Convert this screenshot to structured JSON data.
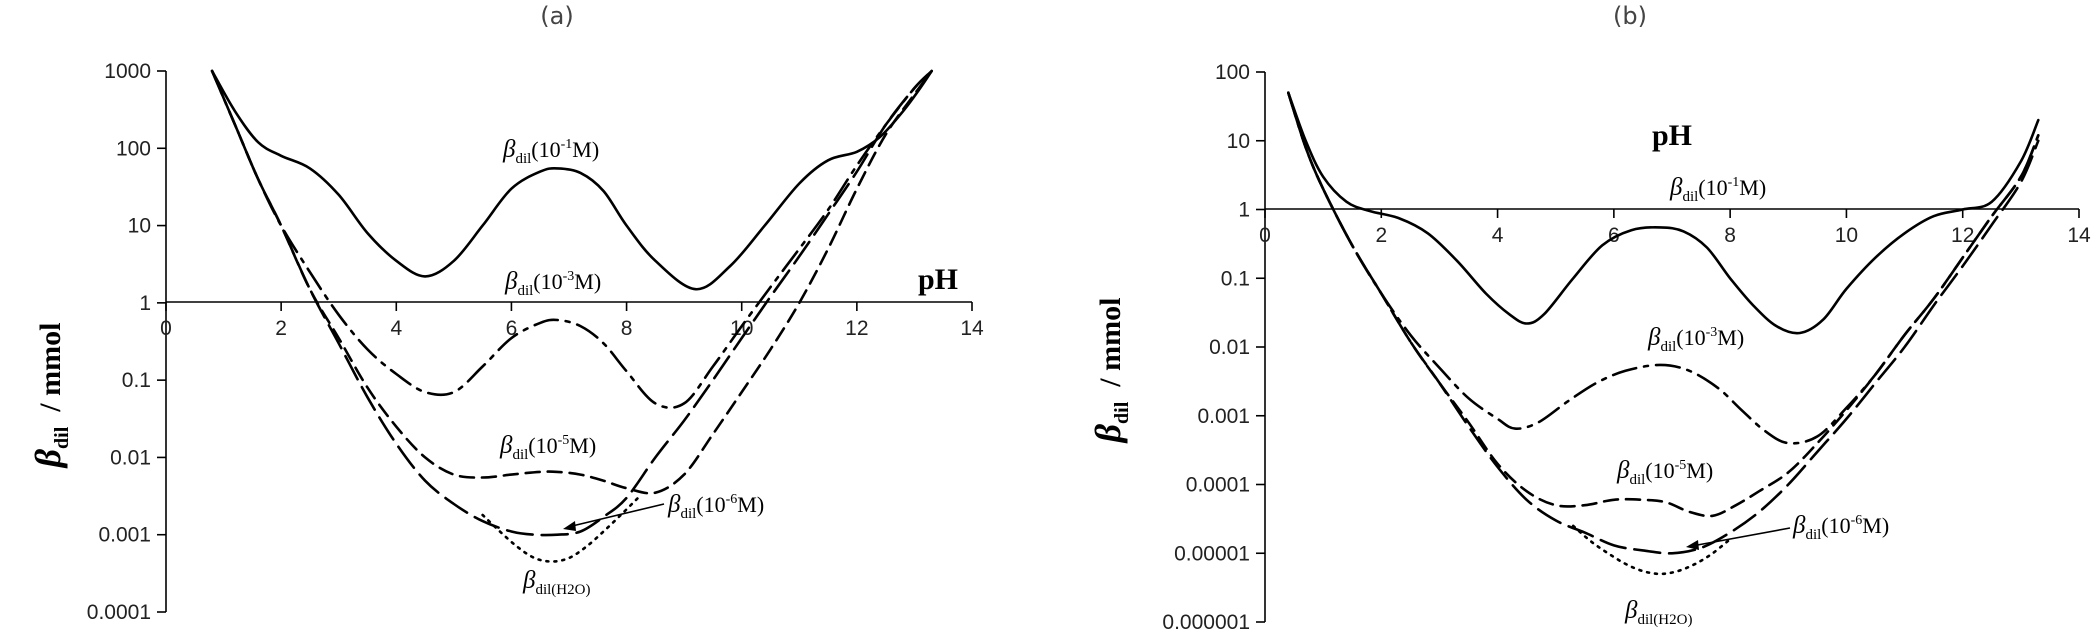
{
  "chart_data": [
    {
      "panel_label": "(a)",
      "type": "line",
      "xlabel": "pH",
      "ylabel": "β_dil / mmol",
      "ylabel_main": "β",
      "ylabel_sub": "dil",
      "ylabel_rest": "  / mmol",
      "log_y": true,
      "xlim": [
        0,
        14
      ],
      "ylim": [
        0.0001,
        1000
      ],
      "x_ticks": [
        "0",
        "2",
        "4",
        "6",
        "8",
        "10",
        "12",
        "14"
      ],
      "y_ticks": [
        "1000",
        "100",
        "10",
        "1",
        "0.1",
        "0.01",
        "0.001",
        "0.0001"
      ],
      "annotations": [
        {
          "pre": "β",
          "sub": "dil",
          "post": "(10",
          "sup": "-1",
          "end": "M)"
        },
        {
          "pre": "β",
          "sub": "dil",
          "post": "(10",
          "sup": "-3",
          "end": "M)"
        },
        {
          "pre": "β",
          "sub": "dil",
          "post": "(10",
          "sup": "-5",
          "end": "M)"
        },
        {
          "pre": "β",
          "sub": "dil",
          "post": "(10",
          "sup": "-6",
          "end": "M)"
        },
        {
          "pre": "β",
          "sub": "dil(H2O)",
          "post": "",
          "sup": "",
          "end": ""
        }
      ],
      "series": [
        {
          "style": "solid",
          "x": [
            0.8,
            1.2,
            1.6,
            2.0,
            2.5,
            3.0,
            3.5,
            4.0,
            4.5,
            5.0,
            5.5,
            6.0,
            6.5,
            6.8,
            7.2,
            7.6,
            8.0,
            8.5,
            9.2,
            9.8,
            10.4,
            11.0,
            11.5,
            12.0,
            12.4,
            12.8,
            13.1,
            13.3
          ],
          "y": [
            1000,
            300,
            120,
            80,
            55,
            25,
            8,
            3.5,
            2.2,
            3.5,
            10,
            30,
            50,
            55,
            48,
            28,
            10,
            3.5,
            1.5,
            3,
            10,
            35,
            70,
            90,
            140,
            300,
            600,
            1000
          ]
        },
        {
          "style": "dashdot",
          "x": [
            0.8,
            1.2,
            1.6,
            2.0,
            2.5,
            3.0,
            3.5,
            4.0,
            4.5,
            5.0,
            5.5,
            6.0,
            6.5,
            6.8,
            7.2,
            7.6,
            8.0,
            8.5,
            9.0,
            9.5,
            10.0,
            10.5,
            11.0,
            11.5,
            12.0,
            12.5,
            13.0,
            13.3
          ],
          "y": [
            1000,
            200,
            40,
            10,
            2.5,
            0.7,
            0.25,
            0.12,
            0.07,
            0.07,
            0.15,
            0.35,
            0.55,
            0.6,
            0.5,
            0.3,
            0.13,
            0.05,
            0.05,
            0.15,
            0.5,
            1.6,
            5,
            16,
            60,
            200,
            600,
            1000
          ]
        },
        {
          "style": "dashed",
          "x": [
            0.8,
            1.2,
            1.6,
            2.0,
            2.5,
            3.0,
            3.5,
            4.0,
            4.5,
            5.0,
            5.5,
            6.0,
            6.5,
            6.8,
            7.2,
            7.6,
            8.0,
            8.5,
            9.0,
            9.5,
            10.0,
            10.5,
            11.0,
            11.5,
            12.0,
            12.5,
            13.0,
            13.3
          ],
          "y": [
            1000,
            200,
            40,
            10,
            1.5,
            0.35,
            0.08,
            0.025,
            0.01,
            0.006,
            0.0055,
            0.006,
            0.0065,
            0.0065,
            0.006,
            0.005,
            0.004,
            0.0035,
            0.006,
            0.02,
            0.07,
            0.25,
            1,
            5,
            30,
            150,
            500,
            1000
          ]
        },
        {
          "style": "longdash",
          "x": [
            0.8,
            1.2,
            1.6,
            2.0,
            2.5,
            3.0,
            3.5,
            4.0,
            4.5,
            5.0,
            5.5,
            6.0,
            6.4,
            6.8,
            7.2,
            7.6,
            8.0,
            8.5,
            9.0,
            9.5,
            10.0,
            10.5,
            11.0,
            11.5,
            12.0,
            12.5,
            13.0,
            13.3
          ],
          "y": [
            1000,
            200,
            40,
            10,
            1.5,
            0.3,
            0.06,
            0.015,
            0.005,
            0.0025,
            0.0015,
            0.0011,
            0.001,
            0.001,
            0.0011,
            0.0017,
            0.003,
            0.01,
            0.03,
            0.1,
            0.35,
            1.2,
            4,
            14,
            50,
            200,
            600,
            1000
          ]
        },
        {
          "style": "dotted",
          "x": [
            5.5,
            5.8,
            6.1,
            6.4,
            6.7,
            7.0,
            7.3,
            7.6,
            7.9,
            8.2
          ],
          "y": [
            0.0018,
            0.0011,
            0.0007,
            0.0005,
            0.00045,
            0.0005,
            0.0007,
            0.0011,
            0.0018,
            0.003
          ]
        }
      ]
    },
    {
      "panel_label": "(b)",
      "type": "line",
      "xlabel": "pH",
      "ylabel": "β_dil / mmol",
      "ylabel_main": "β",
      "ylabel_sub": "dil",
      "ylabel_rest": "  / mmol",
      "log_y": true,
      "xlim": [
        0,
        14
      ],
      "ylim": [
        1e-06,
        100
      ],
      "x_ticks": [
        "0",
        "2",
        "4",
        "6",
        "8",
        "10",
        "12",
        "14"
      ],
      "y_ticks": [
        "100",
        "10",
        "1",
        "0.1",
        "0.01",
        "0.001",
        "0.0001",
        "0.00001",
        "0.000001"
      ],
      "annotations": [
        {
          "pre": "β",
          "sub": "dil",
          "post": "(10",
          "sup": "-1",
          "end": "M)"
        },
        {
          "pre": "β",
          "sub": "dil",
          "post": "(10",
          "sup": "-3",
          "end": "M)"
        },
        {
          "pre": "β",
          "sub": "dil",
          "post": "(10",
          "sup": "-5",
          "end": "M)"
        },
        {
          "pre": "β",
          "sub": "dil",
          "post": "(10",
          "sup": "-6",
          "end": "M)"
        },
        {
          "pre": "β",
          "sub": "dil(H2O)",
          "post": "",
          "sup": "",
          "end": ""
        }
      ],
      "series": [
        {
          "style": "solid",
          "x": [
            0.4,
            0.7,
            1.0,
            1.4,
            1.8,
            2.3,
            2.8,
            3.3,
            3.8,
            4.2,
            4.5,
            4.8,
            5.3,
            5.8,
            6.3,
            6.8,
            7.2,
            7.6,
            8.0,
            8.4,
            8.8,
            9.2,
            9.6,
            10.0,
            10.5,
            11.0,
            11.5,
            12.0,
            12.5,
            13.0,
            13.3
          ],
          "y": [
            50,
            10,
            3,
            1.3,
            0.95,
            0.75,
            0.45,
            0.18,
            0.06,
            0.03,
            0.022,
            0.03,
            0.1,
            0.3,
            0.5,
            0.55,
            0.48,
            0.28,
            0.1,
            0.04,
            0.02,
            0.016,
            0.025,
            0.07,
            0.2,
            0.45,
            0.8,
            1.0,
            1.3,
            5,
            20
          ]
        },
        {
          "style": "dashdot",
          "x": [
            0.4,
            0.7,
            1.0,
            1.5,
            2.0,
            2.5,
            3.0,
            3.5,
            4.0,
            4.3,
            4.7,
            5.2,
            5.7,
            6.2,
            6.8,
            7.3,
            7.8,
            8.2,
            8.6,
            9.0,
            9.5,
            10.0,
            10.5,
            11.0,
            11.5,
            12.0,
            12.5,
            13.0,
            13.3
          ],
          "y": [
            50,
            8,
            2,
            0.3,
            0.06,
            0.015,
            0.005,
            0.0018,
            0.0009,
            0.00065,
            0.0008,
            0.0016,
            0.003,
            0.0045,
            0.0055,
            0.0045,
            0.0025,
            0.0012,
            0.0006,
            0.0004,
            0.0005,
            0.0013,
            0.004,
            0.015,
            0.05,
            0.2,
            0.8,
            3,
            12
          ]
        },
        {
          "style": "dashed",
          "x": [
            0.4,
            0.7,
            1.0,
            1.5,
            2.0,
            2.5,
            3.0,
            3.5,
            4.0,
            4.5,
            5.0,
            5.5,
            6.0,
            6.5,
            6.9,
            7.3,
            7.7,
            8.1,
            8.5,
            9.0,
            9.5,
            10.0,
            10.5,
            11.0,
            11.5,
            12.0,
            12.5,
            13.0,
            13.3
          ],
          "y": [
            50,
            8,
            2,
            0.3,
            0.06,
            0.012,
            0.003,
            0.0008,
            0.0002,
            8e-05,
            5e-05,
            5e-05,
            6e-05,
            6e-05,
            5.5e-05,
            4e-05,
            3.5e-05,
            5e-05,
            8e-05,
            0.00015,
            0.0004,
            0.0012,
            0.004,
            0.015,
            0.05,
            0.2,
            0.8,
            3,
            12
          ]
        },
        {
          "style": "longdash",
          "x": [
            0.4,
            0.7,
            1.0,
            1.5,
            2.0,
            2.5,
            3.0,
            3.5,
            4.0,
            4.5,
            5.0,
            5.5,
            6.0,
            6.5,
            7.0,
            7.5,
            8.0,
            8.5,
            9.0,
            9.5,
            10.0,
            10.5,
            11.0,
            11.5,
            12.0,
            12.5,
            13.0,
            13.3
          ],
          "y": [
            50,
            8,
            2,
            0.3,
            0.06,
            0.012,
            0.003,
            0.0007,
            0.00018,
            6e-05,
            3e-05,
            2e-05,
            1.3e-05,
            1.1e-05,
            1e-05,
            1.2e-05,
            2e-05,
            4e-05,
            0.0001,
            0.0003,
            0.0009,
            0.003,
            0.01,
            0.04,
            0.15,
            0.6,
            2.5,
            10
          ]
        },
        {
          "style": "dotted",
          "x": [
            5.3,
            5.6,
            5.9,
            6.2,
            6.5,
            6.8,
            7.1,
            7.4,
            7.7,
            8.0
          ],
          "y": [
            2.5e-05,
            1.5e-05,
            1e-05,
            7e-06,
            5.5e-06,
            5e-06,
            5.5e-06,
            7e-06,
            1e-05,
            1.6e-05
          ]
        }
      ]
    }
  ]
}
